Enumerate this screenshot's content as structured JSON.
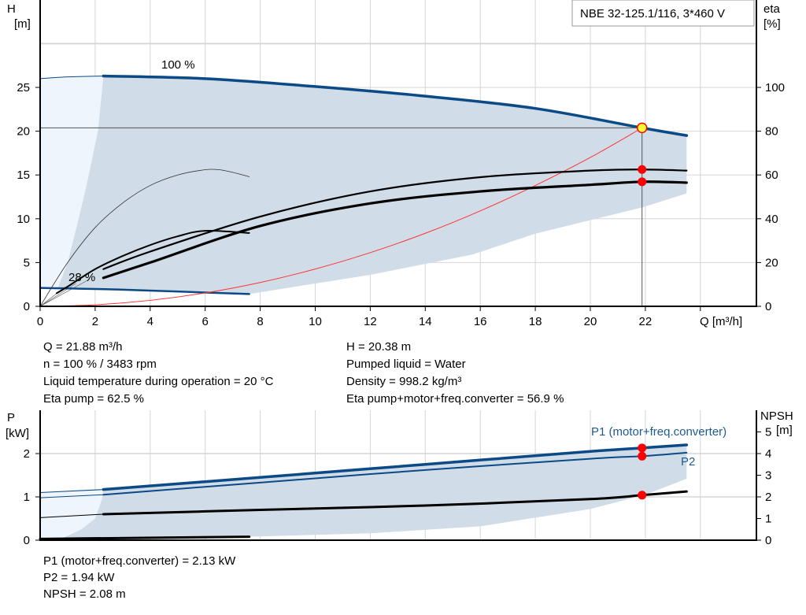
{
  "title_box": "NBE 32-125.1/116, 3*460 V",
  "colors": {
    "curve_blue": "#0b4a86",
    "label_blue": "#1f5a8f",
    "shade_dark": "#d0dce7",
    "shade_light": "#eef5fc",
    "point_red": "#ff0000",
    "point_yellow": "#ffff33",
    "system_red": "#ff3333"
  },
  "info_top": {
    "left": [
      "Q = 21.88 m³/h",
      "n = 100 % / 3483 rpm",
      "Liquid temperature during operation = 20 °C",
      "Eta pump = 62.5 %"
    ],
    "right": [
      "H = 20.38 m",
      "Pumped liquid = Water",
      "Density = 998.2 kg/m³",
      "Eta pump+motor+freq.converter = 56.9 %"
    ]
  },
  "info_bottom": [
    "P1 (motor+freq.converter) = 2.13 kW",
    "P2 = 1.94 kW",
    "NPSH = 2.08 m"
  ],
  "chart_data": [
    {
      "type": "line",
      "xlabel": "Q [m³/h]",
      "ylabel_left": [
        "H",
        "[m]"
      ],
      "ylabel_right": [
        "eta",
        "[%]"
      ],
      "xlim": [
        0,
        26
      ],
      "ylim_left": [
        0,
        35
      ],
      "ylim_right": [
        0,
        126
      ],
      "xticks": [
        0,
        2,
        4,
        6,
        8,
        10,
        12,
        14,
        16,
        18,
        20,
        22
      ],
      "yticks_left": [
        0,
        5,
        10,
        15,
        20,
        25
      ],
      "yticks_right": [
        0,
        20,
        40,
        60,
        80,
        100
      ],
      "grid": true,
      "annotations": [
        {
          "text": "100 %"
        },
        {
          "text": "28 %"
        }
      ],
      "series": [
        {
          "id": "h100_ext",
          "axis": "left",
          "x": [
            0,
            1,
            2.3
          ],
          "y": [
            26,
            26.2,
            26.3
          ]
        },
        {
          "id": "h100",
          "axis": "left",
          "x": [
            2.3,
            6,
            10,
            14,
            18,
            21.88,
            23.5
          ],
          "y": [
            26.3,
            26.0,
            25.1,
            24.0,
            22.6,
            20.38,
            19.5
          ]
        },
        {
          "id": "h28",
          "axis": "left",
          "x": [
            0,
            3,
            7.6
          ],
          "y": [
            2.1,
            1.9,
            1.4
          ]
        },
        {
          "id": "thin_curve",
          "axis": "left",
          "x": [
            0,
            1,
            2,
            3,
            4,
            5,
            6,
            6.5,
            7,
            7.6
          ],
          "y": [
            0,
            5,
            9,
            11.8,
            13.8,
            15,
            15.6,
            15.6,
            15.3,
            14.8
          ]
        },
        {
          "id": "system",
          "axis": "left",
          "x": [
            0,
            2,
            4,
            6,
            8,
            10,
            12,
            14,
            16,
            18,
            20,
            21.88
          ],
          "y": [
            0,
            0.17,
            0.68,
            1.53,
            2.72,
            4.26,
            6.13,
            8.34,
            10.9,
            13.8,
            17.0,
            20.38
          ]
        },
        {
          "id": "eta_pump",
          "axis": "right",
          "x": [
            2.3,
            4,
            8,
            12,
            16,
            20,
            21.88,
            23.5
          ],
          "y": [
            17,
            25,
            41,
            52.5,
            59,
            62,
            62.5,
            62
          ]
        },
        {
          "id": "eta_total",
          "axis": "right",
          "x": [
            2.3,
            4,
            8,
            12,
            16,
            20,
            21.88,
            23.5
          ],
          "y": [
            13,
            20,
            36.7,
            47,
            52.5,
            55.5,
            56.9,
            56.5
          ]
        },
        {
          "id": "eta_pump_28",
          "axis": "right",
          "x": [
            0.6,
            1,
            2,
            3,
            4,
            5,
            6,
            7.6
          ],
          "y": [
            6,
            9,
            17,
            23,
            28,
            32,
            34.5,
            33.5
          ]
        }
      ],
      "operating_point": {
        "Q": 21.88,
        "H": 20.38,
        "eta_pump": 62.5,
        "eta_total": 56.9
      }
    },
    {
      "type": "line",
      "ylabel_left": [
        "P",
        "[kW]"
      ],
      "ylabel_right": [
        "NPSH",
        "[m]"
      ],
      "xlim": [
        0,
        26
      ],
      "ylim_left": [
        0,
        3
      ],
      "ylim_right": [
        0,
        6
      ],
      "yticks_left": [
        0,
        1,
        2
      ],
      "yticks_right": [
        0,
        1,
        2,
        3,
        4,
        5
      ],
      "grid": true,
      "series": [
        {
          "id": "p1_ext",
          "axis": "left",
          "x": [
            0,
            2.3
          ],
          "y": [
            1.1,
            1.17
          ]
        },
        {
          "id": "p1",
          "name": "P1 (motor+freq.converter)",
          "axis": "left",
          "x": [
            2.3,
            8,
            14,
            20,
            21.88,
            23.5
          ],
          "y": [
            1.17,
            1.45,
            1.75,
            2.05,
            2.13,
            2.2
          ]
        },
        {
          "id": "p2_ext",
          "axis": "left",
          "x": [
            0,
            2.3
          ],
          "y": [
            0.98,
            1.05
          ]
        },
        {
          "id": "p2",
          "name": "P2",
          "axis": "left",
          "x": [
            2.3,
            8,
            14,
            20,
            21.88,
            23.5
          ],
          "y": [
            1.05,
            1.33,
            1.62,
            1.88,
            1.94,
            2.02
          ]
        },
        {
          "id": "npsh_ext",
          "axis": "right",
          "x": [
            0,
            2.3
          ],
          "y": [
            1.04,
            1.2
          ]
        },
        {
          "id": "npsh",
          "axis": "right",
          "x": [
            2.3,
            8,
            14,
            20,
            21.88,
            23.5
          ],
          "y": [
            1.2,
            1.4,
            1.6,
            1.9,
            2.08,
            2.25
          ]
        },
        {
          "id": "p_28",
          "axis": "left",
          "x": [
            0,
            7.6
          ],
          "y": [
            0.03,
            0.08
          ]
        }
      ],
      "operating_point": {
        "Q": 21.88,
        "P1": 2.13,
        "P2": 1.94,
        "NPSH": 2.08
      }
    }
  ]
}
